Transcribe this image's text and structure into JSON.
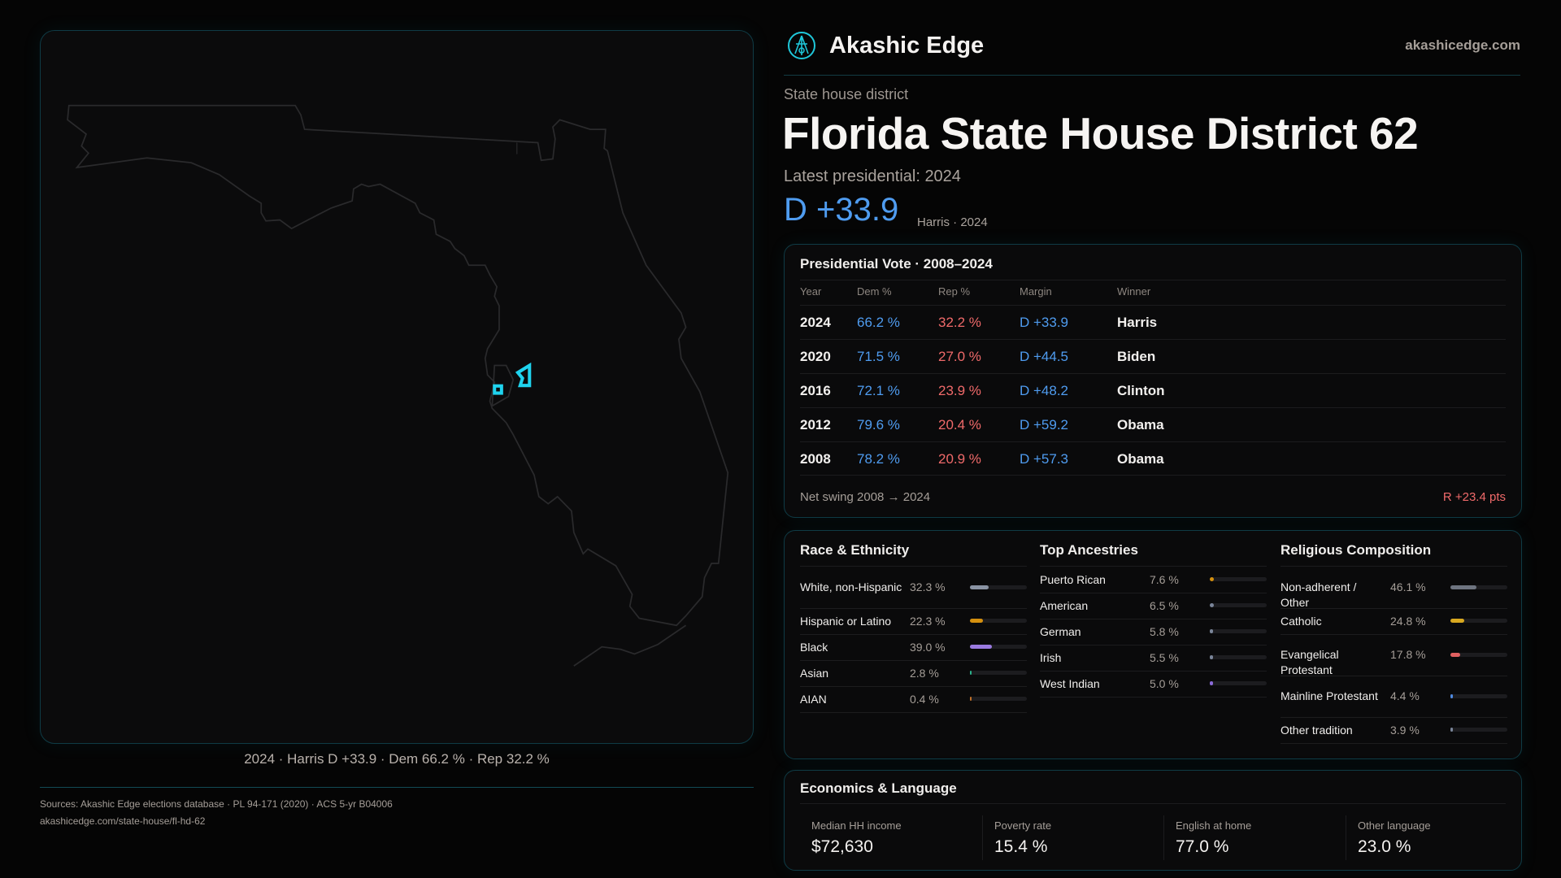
{
  "brand": {
    "name": "Akashic Edge",
    "site": "akashicedge.com",
    "logo_icon": "akashic-emblem-icon",
    "accent": "#1fc7d9"
  },
  "header": {
    "kicker": "State house district",
    "title": "Florida State House District 62",
    "latest": "Latest presidential: 2024",
    "margin": "D +33.9",
    "margin_sub": "Harris · 2024"
  },
  "map": {
    "caption": "2024 · Harris D +33.9 · Dem 66.2 % · Rep 32.2 %",
    "highlight_color": "#1fd3ee"
  },
  "presidential": {
    "title": "Presidential Vote · 2008–2024",
    "columns": [
      "Year",
      "Dem %",
      "Rep %",
      "Margin",
      "Winner"
    ],
    "rows": [
      {
        "year": "2024",
        "dem": "66.2 %",
        "rep": "32.2 %",
        "margin": "D +33.9",
        "winner": "Harris"
      },
      {
        "year": "2020",
        "dem": "71.5 %",
        "rep": "27.0 %",
        "margin": "D +44.5",
        "winner": "Biden"
      },
      {
        "year": "2016",
        "dem": "72.1 %",
        "rep": "23.9 %",
        "margin": "D +48.2",
        "winner": "Clinton"
      },
      {
        "year": "2012",
        "dem": "79.6 %",
        "rep": "20.4 %",
        "margin": "D +59.2",
        "winner": "Obama"
      },
      {
        "year": "2008",
        "dem": "78.2 %",
        "rep": "20.9 %",
        "margin": "D +57.3",
        "winner": "Obama"
      }
    ],
    "swing_label": "Net swing 2008 → 2024",
    "swing_value": "R +23.4 pts",
    "colors": {
      "dem": "#4f9cf0",
      "rep": "#f06a6a"
    }
  },
  "demographics": [
    {
      "title": "Race & Ethnicity",
      "items": [
        {
          "label": "White, non-Hispanic",
          "value": "32.3 %",
          "pct": 32.3,
          "color": "#8a93a3"
        },
        {
          "label": "Hispanic or Latino",
          "value": "22.3 %",
          "pct": 22.3,
          "color": "#d4900f"
        },
        {
          "label": "Black",
          "value": "39.0 %",
          "pct": 39.0,
          "color": "#9a7ae0"
        },
        {
          "label": "Asian",
          "value": "2.8 %",
          "pct": 2.8,
          "color": "#2ab08a"
        },
        {
          "label": "AIAN",
          "value": "0.4 %",
          "pct": 0.4,
          "color": "#c0702a"
        }
      ]
    },
    {
      "title": "Top Ancestries",
      "items": [
        {
          "label": "Puerto Rican",
          "value": "7.6 %",
          "pct": 7.6,
          "color": "#d4900f"
        },
        {
          "label": "American",
          "value": "6.5 %",
          "pct": 6.5,
          "color": "#7a8599"
        },
        {
          "label": "German",
          "value": "5.8 %",
          "pct": 5.8,
          "color": "#7a8599"
        },
        {
          "label": "Irish",
          "value": "5.5 %",
          "pct": 5.5,
          "color": "#7a8599"
        },
        {
          "label": "West Indian",
          "value": "5.0 %",
          "pct": 5.0,
          "color": "#8a6ad8"
        }
      ]
    },
    {
      "title": "Religious Composition",
      "items": [
        {
          "label": "Non-adherent / Other",
          "value": "46.1 %",
          "pct": 46.1,
          "color": "#6e7480"
        },
        {
          "label": "Catholic",
          "value": "24.8 %",
          "pct": 24.8,
          "color": "#d8a820"
        },
        {
          "label": "Evangelical Protestant",
          "value": "17.8 %",
          "pct": 17.8,
          "color": "#e06060"
        },
        {
          "label": "Mainline Protestant",
          "value": "4.4 %",
          "pct": 4.4,
          "color": "#4f8ae0"
        },
        {
          "label": "Other tradition",
          "value": "3.9 %",
          "pct": 3.9,
          "color": "#7a8599"
        }
      ]
    }
  ],
  "economics": {
    "title": "Economics & Language",
    "stats": [
      {
        "label": "Median HH income",
        "value": "$72,630"
      },
      {
        "label": "Poverty rate",
        "value": "15.4 %"
      },
      {
        "label": "English at home",
        "value": "77.0 %"
      },
      {
        "label": "Other language",
        "value": "23.0 %"
      }
    ]
  },
  "footer": {
    "sources": "Sources: Akashic Edge elections database · PL 94-171 (2020) · ACS 5-yr B04006",
    "url": "akashicedge.com/state-house/fl-hd-62"
  }
}
